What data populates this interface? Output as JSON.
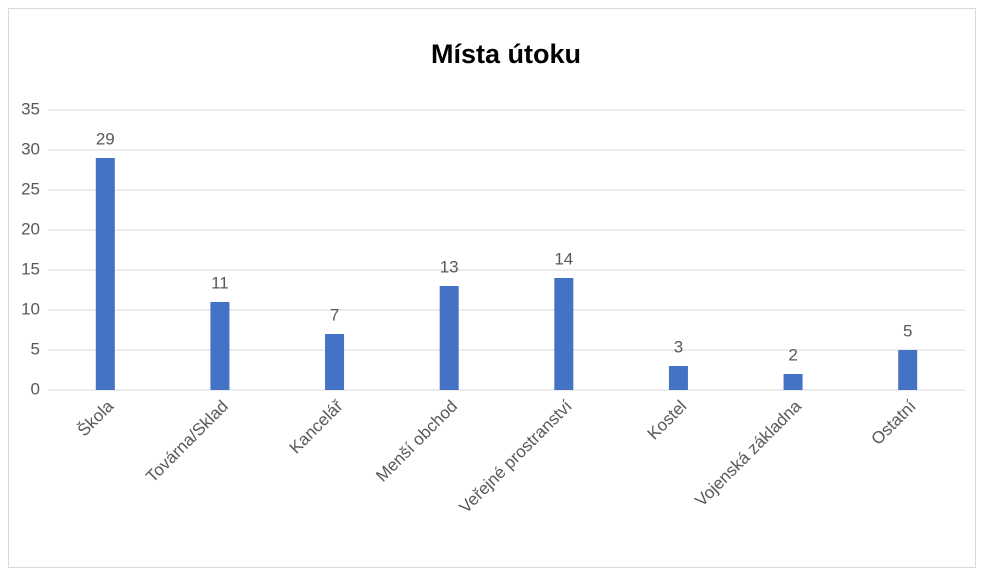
{
  "chart_data": {
    "type": "bar",
    "title": "Místa útoku",
    "categories": [
      "Škola",
      "Továrna/Sklad",
      "Kancelář",
      "Menší obchod",
      "Veřejné prostranství",
      "Kostel",
      "Vojenská základna",
      "Ostatní"
    ],
    "values": [
      29,
      11,
      7,
      13,
      14,
      3,
      2,
      5
    ],
    "color": "#4472c4",
    "ylim": [
      0,
      35
    ],
    "yticks": [
      0,
      5,
      10,
      15,
      20,
      25,
      30,
      35
    ],
    "grid": true,
    "data_labels": true
  }
}
